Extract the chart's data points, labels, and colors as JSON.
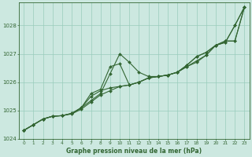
{
  "title": "Graphe pression niveau de la mer (hPa)",
  "bg_color": "#cce8e0",
  "grid_color": "#99ccbb",
  "line_color": "#336633",
  "xlim": [
    -0.5,
    23.5
  ],
  "ylim": [
    1024.0,
    1028.8
  ],
  "yticks": [
    1024,
    1025,
    1026,
    1027,
    1028
  ],
  "xticks": [
    0,
    1,
    2,
    3,
    4,
    5,
    6,
    7,
    8,
    9,
    10,
    11,
    12,
    13,
    14,
    15,
    16,
    17,
    18,
    19,
    20,
    21,
    22,
    23
  ],
  "series": [
    [
      1024.3,
      1024.5,
      1024.7,
      1024.8,
      1024.82,
      1024.88,
      1025.05,
      1025.3,
      1025.55,
      1025.7,
      1025.85,
      1025.9,
      1026.0,
      1026.15,
      1026.2,
      1026.25,
      1026.35,
      1026.55,
      1026.75,
      1026.95,
      1027.3,
      1027.4,
      1028.0,
      1028.65
    ],
    [
      1024.3,
      1024.5,
      1024.7,
      1024.8,
      1024.82,
      1024.9,
      1025.1,
      1025.35,
      1025.6,
      1026.3,
      1027.0,
      1026.7,
      1026.35,
      1026.2,
      1026.2,
      1026.25,
      1026.35,
      1026.55,
      1026.7,
      1026.95,
      1027.3,
      1027.4,
      1028.0,
      1028.65
    ],
    [
      1024.3,
      1024.5,
      1024.7,
      1024.8,
      1024.82,
      1024.9,
      1025.1,
      1025.5,
      1025.7,
      1025.8,
      1025.85,
      1025.9,
      1026.0,
      1026.15,
      1026.2,
      1026.25,
      1026.35,
      1026.6,
      1026.9,
      1027.05,
      1027.3,
      1027.45,
      1027.45,
      1028.65
    ],
    [
      1024.3,
      1024.5,
      1024.7,
      1024.8,
      1024.82,
      1024.9,
      1025.1,
      1025.6,
      1025.75,
      1026.55,
      1026.65,
      1025.9,
      1026.0,
      1026.15,
      1026.2,
      1026.25,
      1026.35,
      1026.6,
      1026.9,
      1027.05,
      1027.3,
      1027.45,
      1027.45,
      1028.65
    ]
  ],
  "figsize": [
    3.2,
    2.0
  ],
  "dpi": 100
}
